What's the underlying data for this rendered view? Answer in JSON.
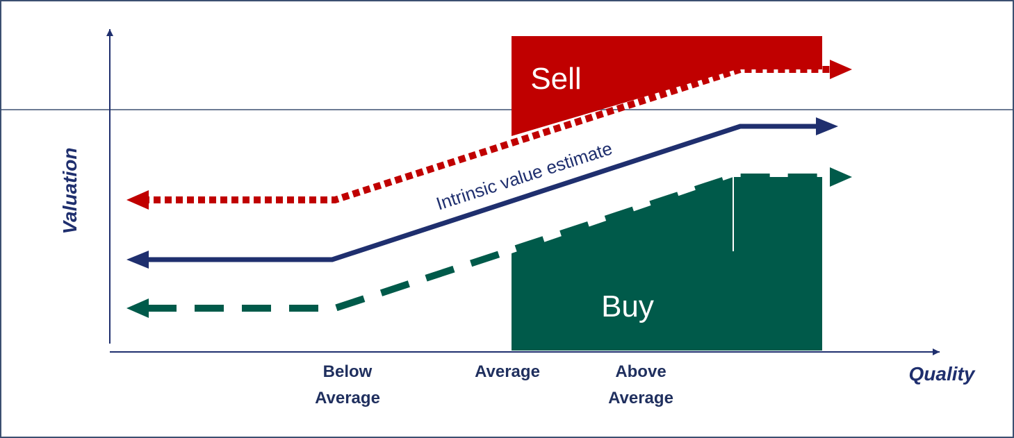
{
  "axes": {
    "y_label": "Valuation",
    "x_label": "Quality"
  },
  "x_categories": [
    [
      "Below",
      "Average"
    ],
    [
      "Average"
    ],
    [
      "Above",
      "Average"
    ]
  ],
  "regions": {
    "sell": "Sell",
    "buy": "Buy"
  },
  "lines": {
    "intrinsic": "Intrinsic value estimate"
  }
}
